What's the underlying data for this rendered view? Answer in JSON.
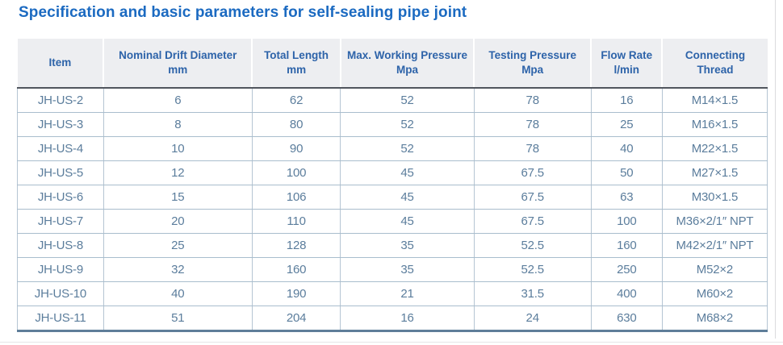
{
  "title": "Specification and basic parameters for self-sealing pipe joint",
  "colors": {
    "title_blue": "#1b6ac1",
    "header_text_blue": "#2d63a9",
    "header_bg": "#edeef1",
    "body_text": "#5b7d9c",
    "grid_line": "#b5c5d3",
    "header_rule_dark": "#50555d",
    "table_bottom_rule": "#5f7e99"
  },
  "table": {
    "columns": [
      {
        "label": "Item",
        "unit": ""
      },
      {
        "label": "Nominal Drift Diameter",
        "unit": "mm"
      },
      {
        "label": "Total Length",
        "unit": "mm"
      },
      {
        "label": "Max. Working Pressure",
        "unit": "Mpa"
      },
      {
        "label": "Testing Pressure",
        "unit": "Mpa"
      },
      {
        "label": "Flow Rate",
        "unit": "l/min"
      },
      {
        "label": "Connecting Thread",
        "unit": ""
      }
    ],
    "rows": [
      [
        "JH-US-2",
        "6",
        "62",
        "52",
        "78",
        "16",
        "M14×1.5"
      ],
      [
        "JH-US-3",
        "8",
        "80",
        "52",
        "78",
        "25",
        "M16×1.5"
      ],
      [
        "JH-US-4",
        "10",
        "90",
        "52",
        "78",
        "40",
        "M22×1.5"
      ],
      [
        "JH-US-5",
        "12",
        "100",
        "45",
        "67.5",
        "50",
        "M27×1.5"
      ],
      [
        "JH-US-6",
        "15",
        "106",
        "45",
        "67.5",
        "63",
        "M30×1.5"
      ],
      [
        "JH-US-7",
        "20",
        "110",
        "45",
        "67.5",
        "100",
        "M36×2/1″ NPT"
      ],
      [
        "JH-US-8",
        "25",
        "128",
        "35",
        "52.5",
        "160",
        "M42×2/1″ NPT"
      ],
      [
        "JH-US-9",
        "32",
        "160",
        "35",
        "52.5",
        "250",
        "M52×2"
      ],
      [
        "JH-US-10",
        "40",
        "190",
        "21",
        "31.5",
        "400",
        "M60×2"
      ],
      [
        "JH-US-11",
        "51",
        "204",
        "16",
        "24",
        "630",
        "M68×2"
      ]
    ]
  }
}
